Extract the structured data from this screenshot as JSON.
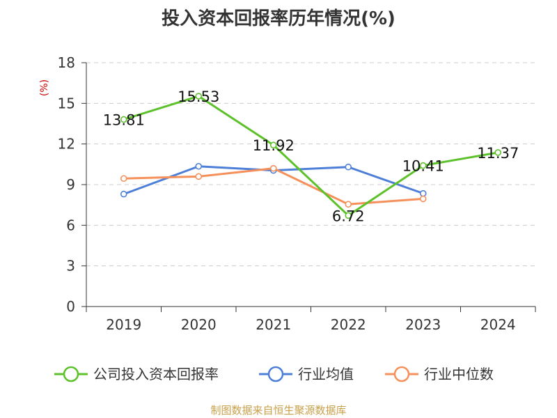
{
  "title": "投入资本回报率历年情况(%)",
  "source": "制图数据来自恒生聚源数据库",
  "chart_data": {
    "type": "line",
    "title": "投入资本回报率历年情况(%)",
    "ylabel": "(%)",
    "xlabel": "",
    "categories": [
      "2019",
      "2020",
      "2021",
      "2022",
      "2023",
      "2024"
    ],
    "ylim": [
      0,
      18
    ],
    "yticks": [
      "0",
      "3",
      "6",
      "9",
      "12",
      "15",
      "18"
    ],
    "grid": true,
    "legend_position": "bottom",
    "series": [
      {
        "name": "公司投入资本回报率",
        "color": "#5cc12a",
        "values": [
          13.81,
          15.53,
          11.92,
          6.72,
          10.41,
          11.37
        ],
        "labels": [
          "13.81",
          "15.53",
          "11.92",
          "6.72",
          "10.41",
          "11.37"
        ]
      },
      {
        "name": "行业均值",
        "color": "#4e7fd8",
        "values": [
          8.3,
          10.35,
          10.05,
          10.3,
          8.35,
          null
        ]
      },
      {
        "name": "行业中位数",
        "color": "#f5905a",
        "values": [
          9.45,
          9.6,
          10.2,
          7.55,
          7.95,
          null
        ]
      }
    ]
  }
}
